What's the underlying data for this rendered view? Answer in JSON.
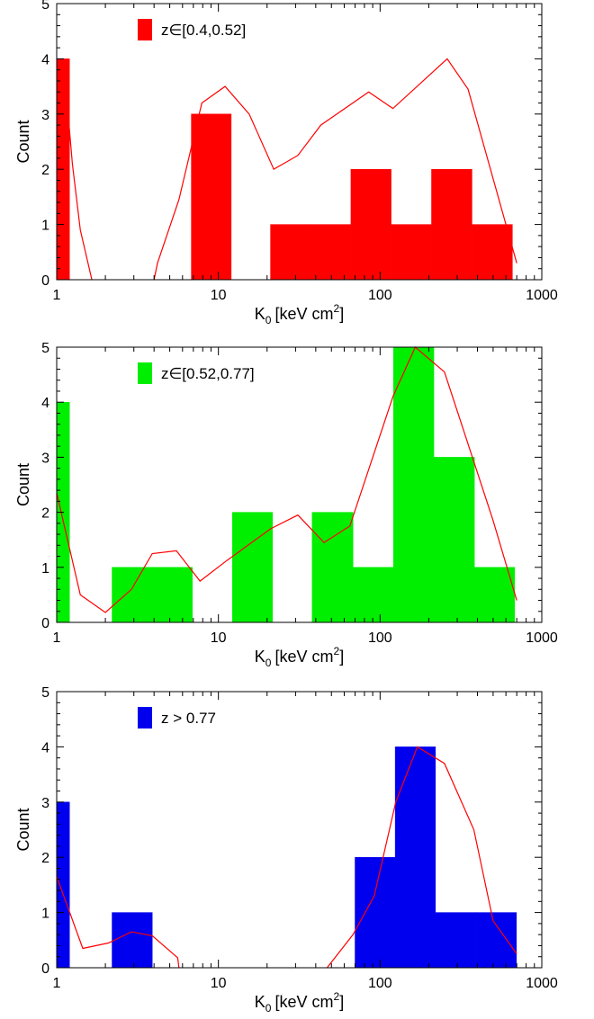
{
  "chart_data": [
    {
      "type": "bar",
      "legend_label": "z∈[0.4,0.52]",
      "color": "#ff0000",
      "xlabel_main": "K",
      "xlabel_sub": "0",
      "xlabel_units": "[keV cm",
      "xlabel_sup": "2",
      "xlabel_close": "]",
      "ylabel": "Count",
      "xscale": "log",
      "xlim": [
        1,
        1000
      ],
      "ylim": [
        0,
        5
      ],
      "x_ticks": [
        "1",
        "10",
        "100",
        "1000"
      ],
      "y_ticks": [
        "0",
        "1",
        "2",
        "3",
        "4",
        "5"
      ],
      "bars": [
        {
          "x0": 1.0,
          "x1": 1.2,
          "value": 4
        },
        {
          "x0": 6.8,
          "x1": 12,
          "value": 3
        },
        {
          "x0": 21,
          "x1": 37,
          "value": 1
        },
        {
          "x0": 37,
          "x1": 66,
          "value": 1
        },
        {
          "x0": 66,
          "x1": 117,
          "value": 2
        },
        {
          "x0": 117,
          "x1": 208,
          "value": 1
        },
        {
          "x0": 208,
          "x1": 370,
          "value": 2
        },
        {
          "x0": 370,
          "x1": 658,
          "value": 1
        }
      ],
      "curve_color": "#ff0000",
      "curve": [
        [
          1.1,
          4.0
        ],
        [
          1.25,
          2.1
        ],
        [
          1.4,
          0.9
        ],
        [
          1.65,
          0.0
        ],
        [
          null,
          null
        ],
        [
          4.0,
          0.0
        ],
        [
          4.2,
          0.3
        ],
        [
          5.7,
          1.45
        ],
        [
          7.9,
          3.2
        ],
        [
          11,
          3.5
        ],
        [
          15.5,
          3.0
        ],
        [
          22,
          2.0
        ],
        [
          31,
          2.25
        ],
        [
          43,
          2.8
        ],
        [
          85,
          3.4
        ],
        [
          120,
          3.1
        ],
        [
          260,
          4.0
        ],
        [
          350,
          3.45
        ],
        [
          700,
          0.3
        ]
      ]
    },
    {
      "type": "bar",
      "legend_label": "z∈[0.52,0.77]",
      "color": "#00ee00",
      "xlabel_main": "K",
      "xlabel_sub": "0",
      "xlabel_units": "[keV cm",
      "xlabel_sup": "2",
      "xlabel_close": "]",
      "ylabel": "Count",
      "xscale": "log",
      "xlim": [
        1,
        1000
      ],
      "ylim": [
        0,
        5
      ],
      "x_ticks": [
        "1",
        "10",
        "100",
        "1000"
      ],
      "y_ticks": [
        "0",
        "1",
        "2",
        "3",
        "4",
        "5"
      ],
      "bars": [
        {
          "x0": 1.0,
          "x1": 1.2,
          "value": 4
        },
        {
          "x0": 2.2,
          "x1": 3.9,
          "value": 1
        },
        {
          "x0": 3.9,
          "x1": 6.9,
          "value": 1
        },
        {
          "x0": 12.2,
          "x1": 21.6,
          "value": 2
        },
        {
          "x0": 38,
          "x1": 68,
          "value": 2
        },
        {
          "x0": 68,
          "x1": 121,
          "value": 1
        },
        {
          "x0": 121,
          "x1": 215,
          "value": 5
        },
        {
          "x0": 215,
          "x1": 383,
          "value": 3
        },
        {
          "x0": 383,
          "x1": 680,
          "value": 1
        }
      ],
      "curve_color": "#ff0000",
      "curve": [
        [
          1.0,
          2.35
        ],
        [
          1.4,
          0.5
        ],
        [
          2.0,
          0.18
        ],
        [
          2.9,
          0.6
        ],
        [
          3.9,
          1.25
        ],
        [
          5.5,
          1.3
        ],
        [
          7.7,
          0.75
        ],
        [
          11,
          1.1
        ],
        [
          21,
          1.7
        ],
        [
          31,
          1.95
        ],
        [
          45,
          1.45
        ],
        [
          65,
          1.75
        ],
        [
          120,
          4.1
        ],
        [
          165,
          5.0
        ],
        [
          250,
          4.55
        ],
        [
          500,
          1.85
        ],
        [
          700,
          0.4
        ]
      ]
    },
    {
      "type": "bar",
      "legend_label": "z > 0.77",
      "color": "#0000ee",
      "xlabel_main": "K",
      "xlabel_sub": "0",
      "xlabel_units": "[keV cm",
      "xlabel_sup": "2",
      "xlabel_close": "]",
      "ylabel": "Count",
      "xscale": "log",
      "xlim": [
        1,
        1000
      ],
      "ylim": [
        0,
        5
      ],
      "x_ticks": [
        "1",
        "10",
        "100",
        "1000"
      ],
      "y_ticks": [
        "0",
        "1",
        "2",
        "3",
        "4",
        "5"
      ],
      "bars": [
        {
          "x0": 1.0,
          "x1": 1.2,
          "value": 3
        },
        {
          "x0": 2.2,
          "x1": 3.9,
          "value": 1
        },
        {
          "x0": 70,
          "x1": 124,
          "value": 2
        },
        {
          "x0": 124,
          "x1": 220,
          "value": 4
        },
        {
          "x0": 220,
          "x1": 392,
          "value": 1
        },
        {
          "x0": 392,
          "x1": 697,
          "value": 1
        }
      ],
      "curve_color": "#ff0000",
      "curve": [
        [
          1.0,
          1.65
        ],
        [
          1.45,
          0.35
        ],
        [
          2.1,
          0.45
        ],
        [
          2.9,
          0.65
        ],
        [
          3.9,
          0.58
        ],
        [
          5.6,
          0.18
        ],
        [
          5.7,
          0.0
        ],
        [
          null,
          null
        ],
        [
          47,
          0.0
        ],
        [
          68,
          0.6
        ],
        [
          92,
          1.3
        ],
        [
          125,
          3.0
        ],
        [
          170,
          4.0
        ],
        [
          250,
          3.7
        ],
        [
          380,
          2.5
        ],
        [
          500,
          0.85
        ],
        [
          700,
          0.25
        ]
      ]
    }
  ]
}
